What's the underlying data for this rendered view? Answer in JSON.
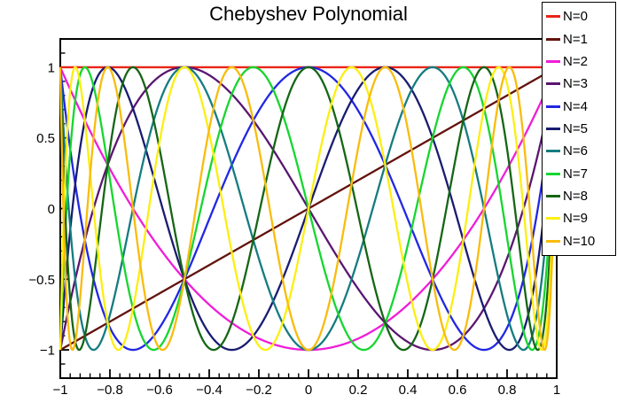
{
  "page": {
    "background_color": "#ffffff",
    "frame_color": "#000000",
    "text_color": "#000000"
  },
  "chart_data": {
    "type": "line",
    "title": "Chebyshev Polynomial",
    "function_rule": "T_n(x) = cos(n*acos(x))",
    "x_range": [
      -1,
      1
    ],
    "y_range": [
      -1.2,
      1.2
    ],
    "grid": false,
    "legend_position": "upper-right",
    "x_ticks": {
      "values": [
        -1,
        -0.8,
        -0.6,
        -0.4,
        -0.2,
        0,
        0.2,
        0.4,
        0.6,
        0.8,
        1
      ],
      "labels": [
        "−1",
        "−0.8",
        "−0.6",
        "−0.4",
        "−0.2",
        "0",
        "0.2",
        "0.4",
        "0.6",
        "0.8",
        "1"
      ],
      "minor_step": 0.04
    },
    "y_ticks": {
      "values": [
        -1,
        -0.5,
        0,
        0.5,
        1
      ],
      "labels": [
        "−1",
        "−0.5",
        "0",
        "0.5",
        "1"
      ],
      "minor_step": 0.1
    },
    "series": [
      {
        "label": "N=0",
        "order": 0,
        "color": "#ea2417"
      },
      {
        "label": "N=1",
        "order": 1,
        "color": "#63130e"
      },
      {
        "label": "N=2",
        "order": 2,
        "color": "#f01dd8"
      },
      {
        "label": "N=3",
        "order": 3,
        "color": "#5a1670"
      },
      {
        "label": "N=4",
        "order": 4,
        "color": "#2127e4"
      },
      {
        "label": "N=5",
        "order": 5,
        "color": "#191c70"
      },
      {
        "label": "N=6",
        "order": 6,
        "color": "#157c80"
      },
      {
        "label": "N=7",
        "order": 7,
        "color": "#16d62f"
      },
      {
        "label": "N=8",
        "order": 8,
        "color": "#156615"
      },
      {
        "label": "N=9",
        "order": 9,
        "color": "#fcef10"
      },
      {
        "label": "N=10",
        "order": 10,
        "color": "#f9bc0d"
      }
    ]
  }
}
